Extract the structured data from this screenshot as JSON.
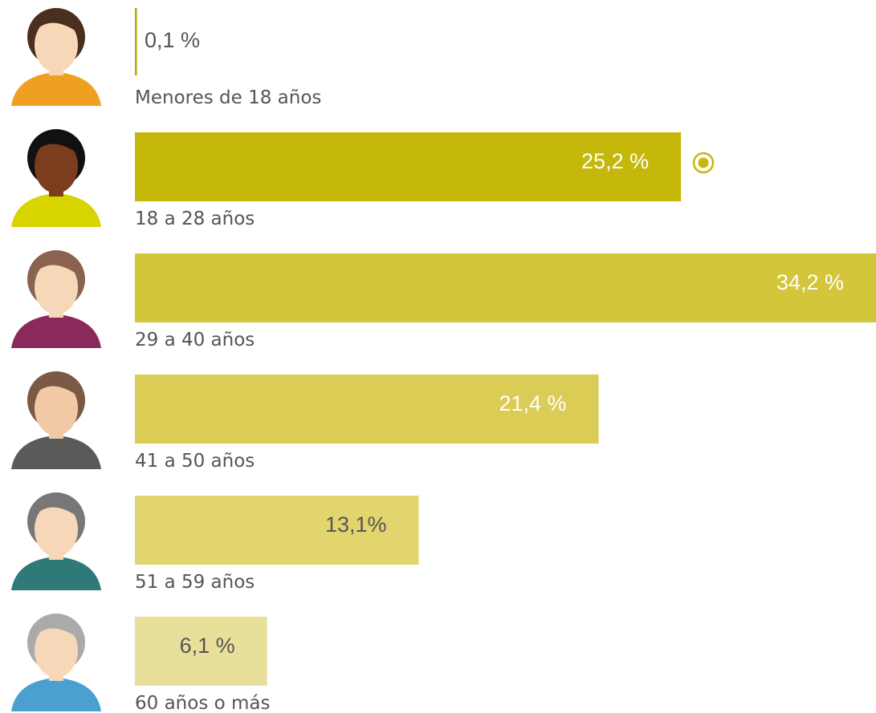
{
  "chart_data": {
    "type": "hbar",
    "categories": [
      "Menores de 18 años",
      "18 a 28 años",
      "29 a 40 años",
      "41 a 50 años",
      "51 a 59 años",
      "60 años o más"
    ],
    "values": [
      0.1,
      25.2,
      34.2,
      21.4,
      13.1,
      6.1
    ],
    "value_labels": [
      "0,1 %",
      "25,2 %",
      "34,2 %",
      "21,4 %",
      "13,1%",
      "6,1 %"
    ],
    "colors": [
      "#b8a800",
      "#c5b80a",
      "#d3c63a",
      "#dbcc55",
      "#e2d56e",
      "#e8df9a"
    ],
    "label_colors": [
      "#555555",
      "#ffffff",
      "#ffffff",
      "#ffffff",
      "#555555",
      "#555555"
    ]
  }
}
